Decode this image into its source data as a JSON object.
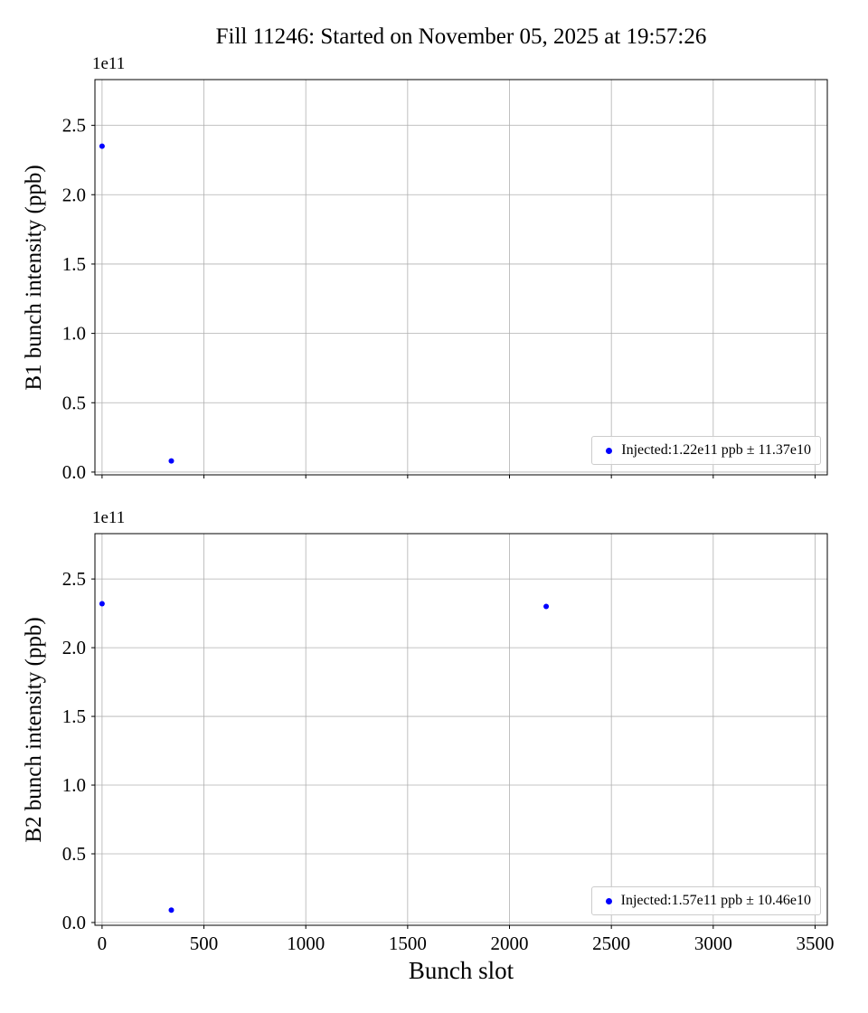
{
  "figure": {
    "title": "Fill 11246: Started on November 05, 2025 at 19:57:26",
    "xlabel": "Bunch slot",
    "background_color": "#ffffff"
  },
  "chart_data": [
    {
      "type": "scatter",
      "ylabel": "B1 bunch intensity (ppb)",
      "y_offset_text": "1e11",
      "legend_label": "Injected:1.22e11 ppb ± 11.37e10",
      "marker_color": "#0000ff",
      "grid_color": "#b0b0b0",
      "grid": true,
      "legend_position": "lower right",
      "points": [
        [
          0,
          2.35
        ],
        [
          340,
          0.08
        ]
      ],
      "xlim": [
        -35,
        3560
      ],
      "ylim": [
        -0.02,
        2.83
      ],
      "xticks": [
        0,
        500,
        1000,
        1500,
        2000,
        2500,
        3000,
        3500
      ],
      "xtick_labels": [
        "0",
        "500",
        "1000",
        "1500",
        "2000",
        "2500",
        "3000",
        "3500"
      ],
      "yticks": [
        0,
        0.5,
        1,
        1.5,
        2,
        2.5
      ],
      "ytick_labels": [
        "0.0",
        "0.5",
        "1.0",
        "1.5",
        "2.0",
        "2.5"
      ],
      "show_xticklabels": false
    },
    {
      "type": "scatter",
      "ylabel": "B2 bunch intensity (ppb)",
      "y_offset_text": "1e11",
      "legend_label": "Injected:1.57e11 ppb ± 10.46e10",
      "marker_color": "#0000ff",
      "grid_color": "#b0b0b0",
      "grid": true,
      "legend_position": "lower right",
      "points": [
        [
          0,
          2.32
        ],
        [
          340,
          0.09
        ],
        [
          2180,
          2.3
        ]
      ],
      "xlim": [
        -35,
        3560
      ],
      "ylim": [
        -0.02,
        2.83
      ],
      "xticks": [
        0,
        500,
        1000,
        1500,
        2000,
        2500,
        3000,
        3500
      ],
      "xtick_labels": [
        "0",
        "500",
        "1000",
        "1500",
        "2000",
        "2500",
        "3000",
        "3500"
      ],
      "yticks": [
        0,
        0.5,
        1,
        1.5,
        2,
        2.5
      ],
      "ytick_labels": [
        "0.0",
        "0.5",
        "1.0",
        "1.5",
        "2.0",
        "2.5"
      ],
      "show_xticklabels": true
    }
  ]
}
